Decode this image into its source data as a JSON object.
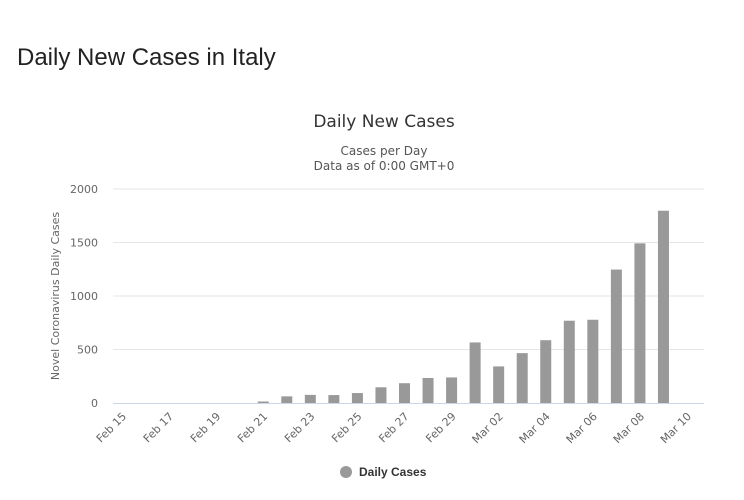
{
  "page": {
    "heading": "Daily New Cases in Italy"
  },
  "chart_data": {
    "type": "bar",
    "title": "Daily New Cases",
    "subtitle_lines": [
      "Cases per Day",
      "Data as of 0:00 GMT+0"
    ],
    "ylabel": "Novel Coronavirus Daily Cases",
    "xlabel": "",
    "ylim": [
      0,
      2000
    ],
    "yticks": [
      0,
      500,
      1000,
      1500,
      2000
    ],
    "categories": [
      "Feb 15",
      "Feb 16",
      "Feb 17",
      "Feb 18",
      "Feb 19",
      "Feb 20",
      "Feb 21",
      "Feb 22",
      "Feb 23",
      "Feb 24",
      "Feb 25",
      "Feb 26",
      "Feb 27",
      "Feb 28",
      "Feb 29",
      "Mar 01",
      "Mar 02",
      "Mar 03",
      "Mar 04",
      "Mar 05",
      "Mar 06",
      "Mar 07",
      "Mar 08",
      "Mar 09",
      "Mar 10"
    ],
    "x_tick_labels": [
      "Feb 15",
      "Feb 17",
      "Feb 19",
      "Feb 21",
      "Feb 23",
      "Feb 25",
      "Feb 27",
      "Feb 29",
      "Mar 02",
      "Mar 04",
      "Mar 06",
      "Mar 08",
      "Mar 10"
    ],
    "series": [
      {
        "name": "Daily Cases",
        "color": "#999999",
        "values": [
          0,
          0,
          0,
          0,
          0,
          0,
          14,
          62,
          76,
          74,
          93,
          147,
          185,
          234,
          239,
          566,
          342,
          466,
          587,
          769,
          778,
          1247,
          1492,
          1797,
          0
        ]
      }
    ],
    "grid": true,
    "legend_position": "bottom-center"
  }
}
